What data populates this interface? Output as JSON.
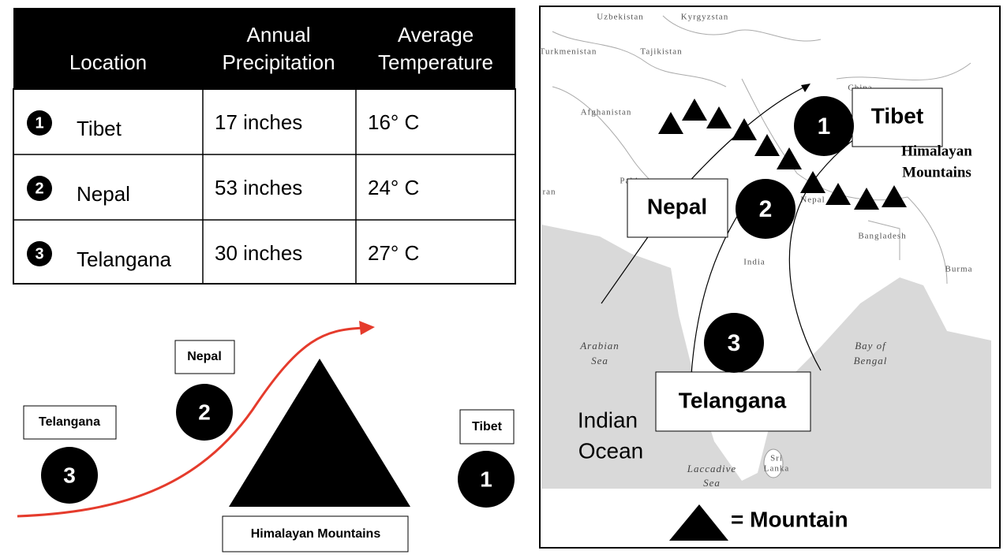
{
  "table": {
    "headers": [
      [
        "Location"
      ],
      [
        "Annual",
        "Precipitation"
      ],
      [
        "Average",
        "Temperature"
      ]
    ],
    "rows": [
      [
        "1",
        "Tibet",
        "17 inches",
        "16° C"
      ],
      [
        "2",
        "Nepal",
        "53 inches",
        "24° C"
      ],
      [
        "3",
        "Telangana",
        "30 inches",
        "27° C"
      ]
    ]
  },
  "diagram": {
    "labels": [
      "Telangana",
      "Nepal",
      "Tibet",
      "Himalayan Mountains"
    ],
    "numbers": [
      "3",
      "2",
      "1"
    ]
  },
  "map": {
    "places": [
      "Uzbekistan",
      "Kyrgyzstan",
      "Turkmenistan",
      "Tajikistan",
      "China",
      "Afghanistan",
      "Pakistan",
      "ran",
      "Nepal",
      "Bangladesh",
      "India",
      "Burma"
    ],
    "seas": [
      [
        "Arabian",
        "Sea"
      ],
      [
        "Bay of",
        "Bengal"
      ],
      [
        "Laccadive",
        "Sea"
      ],
      [
        "Sri",
        "Lanka"
      ]
    ],
    "ocean": [
      "Indian",
      "Ocean"
    ],
    "callouts": [
      "Tibet",
      "Nepal",
      "Telangana"
    ],
    "numbers": [
      "1",
      "2",
      "3"
    ],
    "range_label": [
      "Himalayan",
      "Mountains"
    ],
    "legend": "= Mountain"
  }
}
